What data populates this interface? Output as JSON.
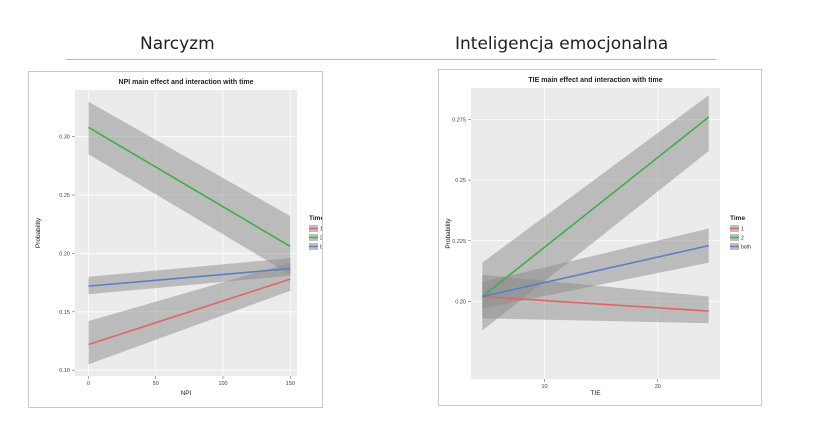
{
  "headings": {
    "left": "Narcyzm",
    "right": "Inteligencja emocjonalna"
  },
  "colors": {
    "series_1": "#e06666",
    "series_2": "#3fae49",
    "series_both": "#5b7fc4",
    "band": "#8c8c8c",
    "panel_bg": "#ebebeb",
    "grid": "#ffffff"
  },
  "chart_data": [
    {
      "type": "line",
      "title": "NPI main effect and interaction with time",
      "xlabel": "NPI",
      "ylabel": "Probability",
      "xlim": [
        -10,
        155
      ],
      "ylim": [
        0.095,
        0.34
      ],
      "xticks": [
        0,
        50,
        100,
        150
      ],
      "xtick_labels": [
        "0",
        "50",
        "100",
        "150"
      ],
      "yticks": [
        0.1,
        0.15,
        0.2,
        0.25,
        0.3
      ],
      "ytick_labels": [
        "0.10",
        "0.15",
        "0.20",
        "0.25",
        "0.30"
      ],
      "grid": true,
      "legend": {
        "title": "Time",
        "position": "right",
        "labels": [
          "1",
          "2",
          "both"
        ]
      },
      "series": [
        {
          "name": "1",
          "x": [
            0,
            150
          ],
          "y": [
            0.122,
            0.178
          ],
          "lower": [
            0.105,
            0.168
          ],
          "upper": [
            0.142,
            0.192
          ]
        },
        {
          "name": "2",
          "x": [
            0,
            150
          ],
          "y": [
            0.308,
            0.206
          ],
          "lower": [
            0.285,
            0.182
          ],
          "upper": [
            0.33,
            0.232
          ]
        },
        {
          "name": "both",
          "x": [
            0,
            150
          ],
          "y": [
            0.172,
            0.187
          ],
          "lower": [
            0.165,
            0.181
          ],
          "upper": [
            0.18,
            0.196
          ]
        }
      ]
    },
    {
      "type": "line",
      "title": "TIE main effect and interaction with time",
      "xlabel": "TIE",
      "ylabel": "Probability",
      "xlim": [
        -3,
        41
      ],
      "ylim": [
        0.168,
        0.288
      ],
      "xticks": [
        10,
        30
      ],
      "xtick_labels": [
        "10",
        "30"
      ],
      "yticks": [
        0.2,
        0.225,
        0.25,
        0.275
      ],
      "ytick_labels": [
        "0.20",
        "0.225",
        "0.25",
        "0.275"
      ],
      "grid": true,
      "legend": {
        "title": "Time",
        "position": "right",
        "labels": [
          "1",
          "2",
          "both"
        ]
      },
      "series": [
        {
          "name": "1",
          "x": [
            -1,
            39
          ],
          "y": [
            0.202,
            0.196
          ],
          "lower": [
            0.193,
            0.191
          ],
          "upper": [
            0.211,
            0.202
          ]
        },
        {
          "name": "2",
          "x": [
            -1,
            39
          ],
          "y": [
            0.202,
            0.276
          ],
          "lower": [
            0.188,
            0.262
          ],
          "upper": [
            0.216,
            0.285
          ]
        },
        {
          "name": "both",
          "x": [
            -1,
            39
          ],
          "y": [
            0.202,
            0.223
          ],
          "lower": [
            0.197,
            0.216
          ],
          "upper": [
            0.208,
            0.23
          ]
        }
      ]
    }
  ]
}
